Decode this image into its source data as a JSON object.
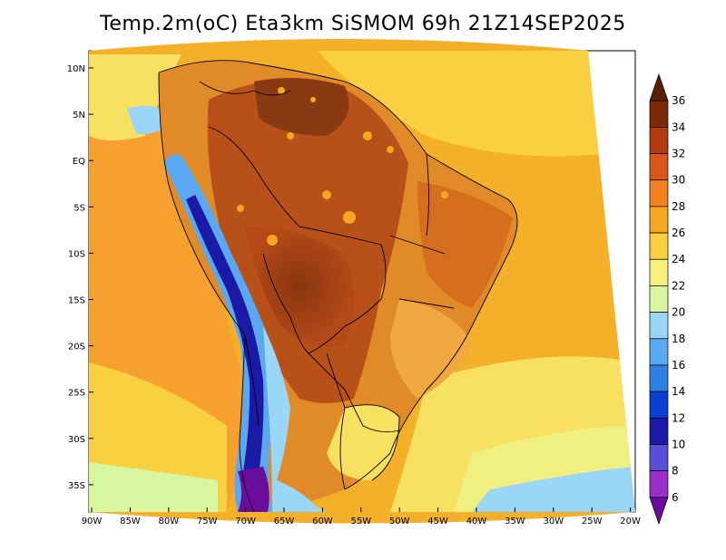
{
  "title": "Temp.2m(oC) Eta3km SiSMOM 69h 21Z14SEP2025",
  "lat_labels": [
    "10N",
    "5N",
    "EQ",
    "5S",
    "10S",
    "15S",
    "20S",
    "25S",
    "30S",
    "35S"
  ],
  "lon_labels": [
    "90W",
    "85W",
    "80W",
    "75W",
    "70W",
    "65W",
    "60W",
    "55W",
    "50W",
    "45W",
    "40W",
    "35W",
    "30W",
    "25W",
    "20W"
  ],
  "colorbar": {
    "levels": [
      "6",
      "8",
      "10",
      "12",
      "14",
      "16",
      "18",
      "20",
      "22",
      "24",
      "26",
      "28",
      "30",
      "32",
      "34",
      "36"
    ],
    "colors": [
      "#6a0d9c",
      "#9b30c8",
      "#5a4fd8",
      "#1a1aa6",
      "#0a3fcf",
      "#2f7fe0",
      "#5aa8f0",
      "#9ad6f5",
      "#d8f5a0",
      "#f8f07a",
      "#f8d040",
      "#f5a623",
      "#f08020",
      "#d8561a",
      "#b03c10",
      "#7a2a08",
      "#5a1e05"
    ]
  }
}
